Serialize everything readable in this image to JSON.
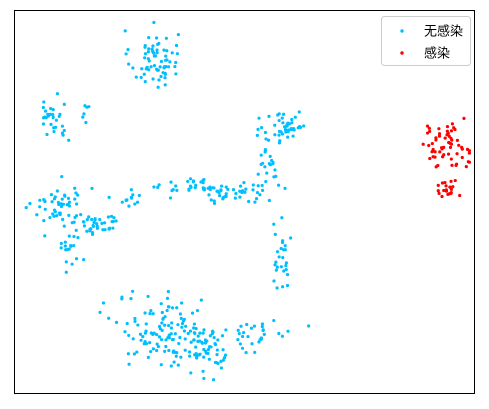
{
  "chart_data": {
    "type": "scatter",
    "title": "",
    "xlabel": "",
    "ylabel": "",
    "xlim": [
      0,
      100
    ],
    "ylim": [
      0,
      100
    ],
    "grid": false,
    "axes_ticks": false,
    "legend_position": "top-right",
    "series": [
      {
        "name": "无感染",
        "color": "#00bfff",
        "marker_radius": 1.6,
        "clusters": [
          {
            "cx": 30.3,
            "cy": 87.4,
            "sx": 2.6,
            "sy": 3.8,
            "n": 70
          },
          {
            "cx": 8.4,
            "cy": 72.0,
            "sx": 1.8,
            "sy": 3.2,
            "n": 30
          },
          {
            "cx": 15.2,
            "cy": 75.0,
            "sx": 1.0,
            "sy": 2.0,
            "n": 6
          },
          {
            "cx": 10.2,
            "cy": 48.9,
            "sx": 3.2,
            "sy": 3.0,
            "n": 55
          },
          {
            "cx": 17.8,
            "cy": 44.3,
            "sx": 2.5,
            "sy": 1.5,
            "n": 35
          },
          {
            "cx": 12.3,
            "cy": 38.0,
            "sx": 1.5,
            "sy": 3.0,
            "n": 18
          },
          {
            "cx": 25.5,
            "cy": 50.5,
            "sx": 1.1,
            "sy": 1.0,
            "n": 12
          },
          {
            "cx": 39.2,
            "cy": 53.8,
            "sx": 3.6,
            "sy": 1.2,
            "n": 30
          },
          {
            "cx": 45.6,
            "cy": 52.2,
            "sx": 3.2,
            "sy": 1.3,
            "n": 25
          },
          {
            "cx": 51.2,
            "cy": 53.2,
            "sx": 3.0,
            "sy": 1.1,
            "n": 16
          },
          {
            "cx": 59.0,
            "cy": 69.8,
            "sx": 2.4,
            "sy": 2.8,
            "n": 45
          },
          {
            "cx": 54.5,
            "cy": 59.0,
            "sx": 1.6,
            "sy": 4.0,
            "n": 25
          },
          {
            "cx": 58.0,
            "cy": 38.5,
            "sx": 1.1,
            "sy": 6.5,
            "n": 28
          },
          {
            "cx": 33.4,
            "cy": 16.0,
            "sx": 5.5,
            "sy": 4.8,
            "n": 120
          },
          {
            "cx": 41.9,
            "cy": 11.0,
            "sx": 3.2,
            "sy": 3.5,
            "n": 50
          },
          {
            "cx": 53.0,
            "cy": 15.9,
            "sx": 3.8,
            "sy": 1.6,
            "n": 28
          }
        ]
      },
      {
        "name": "感染",
        "color": "#ff0000",
        "marker_radius": 1.6,
        "clusters": [
          {
            "cx": 93.9,
            "cy": 64.8,
            "sx": 2.8,
            "sy": 2.8,
            "n": 60
          },
          {
            "cx": 94.1,
            "cy": 53.6,
            "sx": 1.2,
            "sy": 1.6,
            "n": 20
          }
        ]
      }
    ]
  }
}
